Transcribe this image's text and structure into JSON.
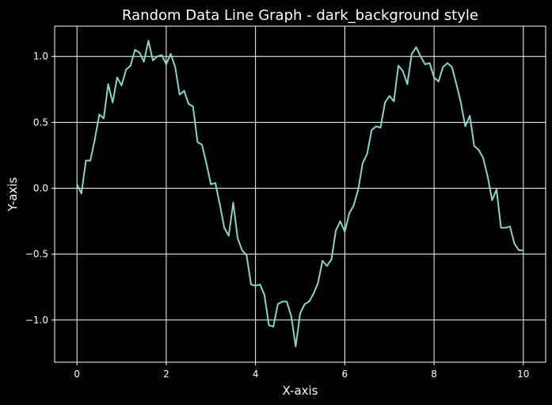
{
  "chart_data": {
    "type": "line",
    "title": "Random Data Line Graph - dark_background style",
    "xlabel": "X-axis",
    "ylabel": "Y-axis",
    "xlim": [
      -0.5,
      10.5
    ],
    "ylim": [
      -1.32,
      1.23
    ],
    "xticks": [
      0,
      2,
      4,
      6,
      8,
      10
    ],
    "xtick_labels": [
      "0",
      "2",
      "4",
      "6",
      "8",
      "10"
    ],
    "yticks": [
      -1.0,
      -0.5,
      0.0,
      0.5,
      1.0
    ],
    "ytick_labels": [
      "−1.0",
      "−0.5",
      "0.0",
      "0.5",
      "1.0"
    ],
    "grid": true,
    "colors": {
      "background": "#000000",
      "line": "#8dd3c7",
      "grid": "#ffffff",
      "text": "#ffffff"
    },
    "series": [
      {
        "x": [
          0,
          0.1,
          0.2,
          0.3,
          0.4,
          0.5,
          0.6,
          0.7,
          0.8,
          0.9,
          1.0,
          1.1,
          1.2,
          1.3,
          1.4,
          1.5,
          1.6,
          1.7,
          1.8,
          1.9,
          2.0,
          2.1,
          2.2,
          2.3,
          2.4,
          2.5,
          2.6,
          2.7,
          2.8,
          2.9,
          3.0,
          3.1,
          3.2,
          3.3,
          3.4,
          3.5,
          3.6,
          3.7,
          3.8,
          3.9,
          4.0,
          4.1,
          4.2,
          4.3,
          4.4,
          4.5,
          4.6,
          4.7,
          4.8,
          4.9,
          5.0,
          5.1,
          5.2,
          5.3,
          5.4,
          5.5,
          5.6,
          5.7,
          5.8,
          5.9,
          6.0,
          6.1,
          6.2,
          6.3,
          6.4,
          6.5,
          6.6,
          6.7,
          6.8,
          6.9,
          7.0,
          7.1,
          7.2,
          7.3,
          7.4,
          7.5,
          7.6,
          7.7,
          7.8,
          7.9,
          8.0,
          8.1,
          8.2,
          8.3,
          8.4,
          8.5,
          8.6,
          8.7,
          8.8,
          8.9,
          9.0,
          9.1,
          9.2,
          9.3,
          9.4,
          9.5,
          9.6,
          9.7,
          9.8,
          9.9,
          10.0
        ],
        "values": [
          0.03,
          -0.04,
          0.21,
          0.21,
          0.37,
          0.56,
          0.53,
          0.79,
          0.65,
          0.84,
          0.78,
          0.9,
          0.93,
          1.05,
          1.03,
          0.96,
          1.12,
          0.97,
          1.0,
          1.01,
          0.94,
          1.02,
          0.92,
          0.71,
          0.74,
          0.64,
          0.62,
          0.35,
          0.33,
          0.19,
          0.03,
          0.04,
          -0.12,
          -0.3,
          -0.36,
          -0.11,
          -0.38,
          -0.47,
          -0.51,
          -0.73,
          -0.74,
          -0.73,
          -0.81,
          -1.04,
          -1.05,
          -0.88,
          -0.86,
          -0.86,
          -0.97,
          -1.2,
          -0.95,
          -0.88,
          -0.86,
          -0.8,
          -0.72,
          -0.55,
          -0.59,
          -0.54,
          -0.32,
          -0.25,
          -0.33,
          -0.19,
          -0.13,
          -0.01,
          0.19,
          0.26,
          0.44,
          0.47,
          0.46,
          0.65,
          0.7,
          0.66,
          0.93,
          0.89,
          0.79,
          1.02,
          1.07,
          1.0,
          0.94,
          0.95,
          0.84,
          0.81,
          0.92,
          0.95,
          0.92,
          0.79,
          0.65,
          0.47,
          0.55,
          0.32,
          0.29,
          0.23,
          0.09,
          -0.09,
          -0.01,
          -0.3,
          -0.3,
          -0.29,
          -0.42,
          -0.47,
          -0.47
        ]
      }
    ]
  }
}
